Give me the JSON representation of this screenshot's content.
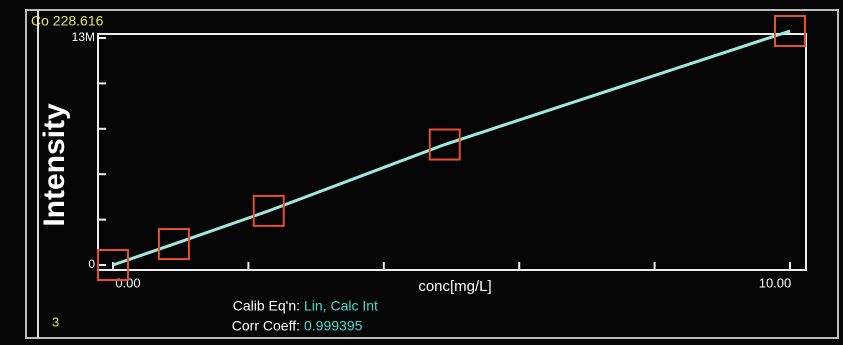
{
  "chart_data": {
    "type": "scatter",
    "title": "Co 228.616",
    "y_label": "Intensity",
    "x_label": "conc[mg/L]",
    "corner_label": "3",
    "equation_label": "Calib Eq'n:",
    "equation_value": "Lin, Calc Int",
    "coeff_label": "Corr Coeff:",
    "coeff_value": "0.999395",
    "xlim": [
      0,
      10
    ],
    "ylim": [
      0,
      13000000
    ],
    "xticks": [
      {
        "value": 0,
        "label": "0.00"
      },
      {
        "value": 10,
        "label": "10.00"
      }
    ],
    "yticks": [
      {
        "value": 0,
        "label": "0"
      },
      {
        "value": 13000000,
        "label": "13M"
      }
    ],
    "series": [
      {
        "color": "#e8502a",
        "line_color": "#9fe8e0",
        "x": [
          0,
          0.9,
          2.3,
          4.9,
          10
        ],
        "values": [
          0,
          1200000,
          3100000,
          6900000,
          13400000
        ]
      }
    ]
  }
}
